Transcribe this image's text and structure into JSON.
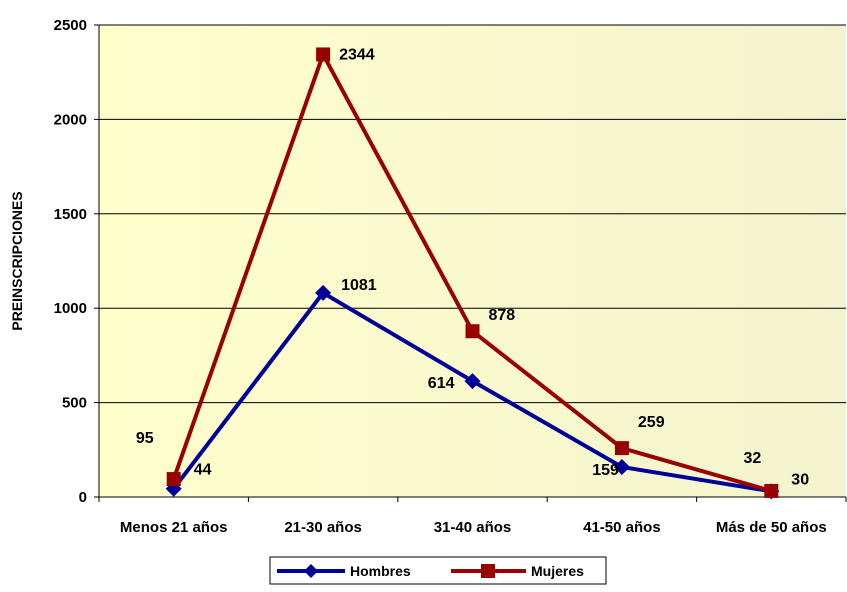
{
  "chart_data": {
    "type": "line",
    "title": "",
    "xlabel": "",
    "ylabel": "PREINSCRIPCIONES",
    "ylim": [
      0,
      2500
    ],
    "yticks": [
      0,
      500,
      1000,
      1500,
      2000,
      2500
    ],
    "categories": [
      "Menos 21 años",
      "21-30 años",
      "31-40 años",
      "41-50 años",
      "Más de 50 años"
    ],
    "grid": true,
    "legend_position": "bottom",
    "plot_background": "#FFFFCC",
    "series": [
      {
        "name": "Hombres",
        "values": [
          44,
          1081,
          614,
          159,
          30
        ],
        "color": "#000099",
        "marker": "diamond"
      },
      {
        "name": "Mujeres",
        "values": [
          95,
          2344,
          878,
          259,
          32
        ],
        "color": "#990000",
        "marker": "square"
      }
    ]
  }
}
